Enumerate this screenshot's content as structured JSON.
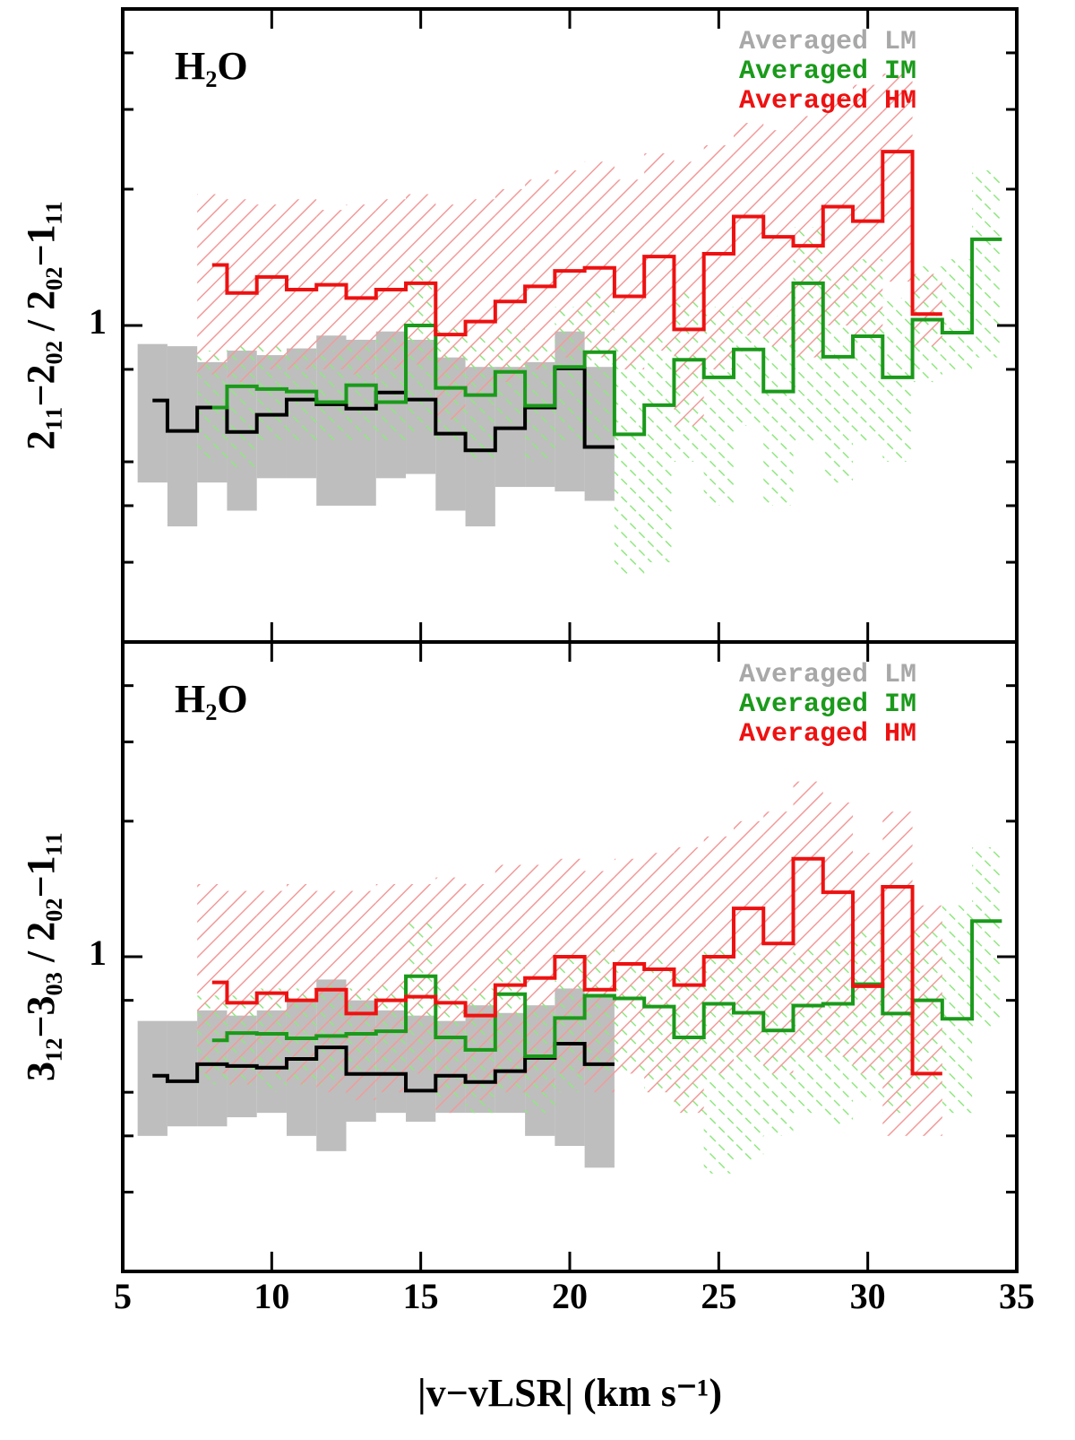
{
  "chart_data": [
    {
      "type": "step",
      "annotation": "H₂O",
      "ylabel": "2₁₁−2₀₂ / 2₀₂−1₁₁",
      "log_y": true,
      "ylim": [
        0.2,
        5
      ],
      "yticks": [
        1
      ],
      "minor_yticks": [
        0.3,
        0.4,
        0.5,
        0.8,
        2,
        3,
        4
      ],
      "legend": "upper right",
      "series": [
        {
          "name": "Averaged LM",
          "color": "#a8a8a8",
          "line_color": "#000000",
          "band_color": "#bebebe",
          "x": [
            6,
            7,
            8,
            9,
            10,
            11,
            12,
            13,
            14,
            15,
            16,
            17,
            18,
            19,
            20,
            21
          ],
          "values": [
            0.683,
            0.585,
            0.659,
            0.582,
            0.635,
            0.686,
            0.67,
            0.655,
            0.711,
            0.686,
            0.577,
            0.53,
            0.593,
            0.659,
            0.804,
            0.539
          ],
          "low": [
            0.45,
            0.36,
            0.45,
            0.39,
            0.46,
            0.46,
            0.4,
            0.4,
            0.46,
            0.47,
            0.39,
            0.36,
            0.44,
            0.44,
            0.43,
            0.41
          ],
          "high": [
            0.91,
            0.9,
            0.83,
            0.88,
            0.86,
            0.89,
            0.95,
            0.93,
            0.97,
            0.93,
            0.85,
            0.81,
            0.81,
            0.83,
            0.97,
            0.81
          ]
        },
        {
          "name": "Averaged IM",
          "color": "#1a9a1a",
          "line_color": "#1a9a1a",
          "band_color": "#8fe87f",
          "x": [
            8,
            9,
            10,
            11,
            12,
            13,
            14,
            15,
            16,
            17,
            18,
            19,
            20,
            21,
            22,
            23,
            24,
            25,
            26,
            27,
            28,
            29,
            30,
            31,
            32,
            33,
            34
          ],
          "values": [
            0.659,
            0.734,
            0.724,
            0.715,
            0.677,
            0.738,
            0.677,
            1.0,
            0.728,
            0.702,
            0.79,
            0.665,
            0.81,
            0.873,
            0.575,
            0.667,
            0.84,
            0.768,
            0.885,
            0.715,
            1.24,
            0.853,
            0.947,
            0.768,
            1.03,
            0.964,
            1.55
          ],
          "low": [
            0.5,
            0.48,
            0.55,
            0.55,
            0.55,
            0.55,
            0.55,
            0.58,
            0.55,
            0.5,
            0.6,
            0.5,
            0.55,
            0.55,
            0.28,
            0.3,
            0.5,
            0.4,
            0.6,
            0.4,
            0.55,
            0.45,
            0.55,
            0.5,
            0.75,
            0.8,
            0.85
          ],
          "high": [
            0.88,
            0.9,
            0.9,
            0.88,
            0.88,
            0.92,
            0.95,
            1.4,
            1.0,
            0.95,
            1.0,
            0.9,
            1.1,
            1.2,
            0.95,
            0.95,
            1.2,
            1.1,
            1.15,
            1.05,
            1.65,
            1.3,
            1.4,
            1.15,
            1.35,
            1.4,
            2.2
          ]
        },
        {
          "name": "Averaged HM",
          "color": "#ee1111",
          "line_color": "#ee1111",
          "band_color": "#f39a9a",
          "x": [
            8,
            9,
            10,
            11,
            12,
            13,
            14,
            15,
            16,
            17,
            18,
            19,
            20,
            21,
            22,
            23,
            24,
            25,
            26,
            27,
            28,
            29,
            30,
            31,
            32
          ],
          "values": [
            1.36,
            1.18,
            1.28,
            1.2,
            1.23,
            1.15,
            1.2,
            1.24,
            0.955,
            1.02,
            1.13,
            1.22,
            1.32,
            1.34,
            1.16,
            1.42,
            0.98,
            1.44,
            1.74,
            1.57,
            1.5,
            1.83,
            1.7,
            2.42,
            1.06
          ],
          "low": [
            0.78,
            0.75,
            0.8,
            0.8,
            0.8,
            0.78,
            0.8,
            0.82,
            0.62,
            0.7,
            0.75,
            0.8,
            0.85,
            0.85,
            0.8,
            0.88,
            0.6,
            0.8,
            0.95,
            0.9,
            0.85,
            1.0,
            0.95,
            1.25,
            0.9
          ],
          "high": [
            1.95,
            1.9,
            1.85,
            1.9,
            1.8,
            1.85,
            1.9,
            1.95,
            1.85,
            1.9,
            2.0,
            2.1,
            2.2,
            2.3,
            2.1,
            2.4,
            2.3,
            2.5,
            2.8,
            2.7,
            2.9,
            3.2,
            3.4,
            3.6,
            1.3
          ]
        }
      ]
    },
    {
      "type": "step",
      "annotation": "H₂O",
      "ylabel": "3₁₂−3₀₃ / 2₀₂−1₁₁",
      "xlabel": "|v−vLSR| (km s⁻¹)",
      "xlim": [
        5,
        35
      ],
      "xticks": [
        5,
        10,
        15,
        20,
        25,
        30,
        35
      ],
      "log_y": true,
      "ylim": [
        0.2,
        5
      ],
      "yticks": [
        1
      ],
      "minor_yticks": [
        0.3,
        0.4,
        0.5,
        0.8,
        2,
        3,
        4
      ],
      "legend": "upper right",
      "series": [
        {
          "name": "Averaged LM",
          "color": "#a8a8a8",
          "line_color": "#000000",
          "band_color": "#bebebe",
          "x": [
            6,
            7,
            8,
            9,
            10,
            11,
            12,
            13,
            14,
            15,
            16,
            17,
            18,
            19,
            20,
            21
          ],
          "values": [
            0.544,
            0.529,
            0.577,
            0.572,
            0.567,
            0.593,
            0.629,
            0.549,
            0.549,
            0.504,
            0.544,
            0.527,
            0.557,
            0.596,
            0.641,
            0.577
          ],
          "low": [
            0.4,
            0.42,
            0.42,
            0.44,
            0.45,
            0.4,
            0.37,
            0.43,
            0.45,
            0.43,
            0.45,
            0.45,
            0.45,
            0.4,
            0.38,
            0.34
          ],
          "high": [
            0.72,
            0.72,
            0.76,
            0.74,
            0.76,
            0.8,
            0.89,
            0.8,
            0.76,
            0.74,
            0.72,
            0.78,
            0.75,
            0.78,
            0.85,
            0.82
          ]
        },
        {
          "name": "Averaged IM",
          "color": "#1a9a1a",
          "line_color": "#1a9a1a",
          "band_color": "#8fe87f",
          "x": [
            8,
            9,
            10,
            11,
            12,
            13,
            14,
            15,
            16,
            17,
            18,
            19,
            20,
            21,
            22,
            23,
            24,
            25,
            26,
            27,
            28,
            29,
            30,
            31,
            32,
            33,
            34
          ],
          "values": [
            0.652,
            0.677,
            0.674,
            0.659,
            0.667,
            0.674,
            0.683,
            0.905,
            0.662,
            0.621,
            0.826,
            0.601,
            0.731,
            0.819,
            0.808,
            0.775,
            0.662,
            0.786,
            0.751,
            0.686,
            0.779,
            0.786,
            0.869,
            0.748,
            0.8,
            0.728,
            1.2
          ],
          "low": [
            0.52,
            0.52,
            0.5,
            0.52,
            0.52,
            0.55,
            0.55,
            0.55,
            0.48,
            0.45,
            0.5,
            0.45,
            0.5,
            0.55,
            0.55,
            0.5,
            0.45,
            0.33,
            0.35,
            0.4,
            0.45,
            0.42,
            0.48,
            0.45,
            0.5,
            0.45,
            0.7
          ],
          "high": [
            0.82,
            0.82,
            0.85,
            0.85,
            0.88,
            0.85,
            0.88,
            1.2,
            0.88,
            0.85,
            1.05,
            0.8,
            1.0,
            1.05,
            0.95,
            1.0,
            0.95,
            1.05,
            1.05,
            1.0,
            1.05,
            1.1,
            1.15,
            1.05,
            1.2,
            1.3,
            1.75
          ]
        },
        {
          "name": "Averaged HM",
          "color": "#ee1111",
          "line_color": "#ee1111",
          "band_color": "#f39a9a",
          "x": [
            8,
            9,
            10,
            11,
            12,
            13,
            14,
            15,
            16,
            17,
            18,
            19,
            20,
            21,
            22,
            23,
            24,
            25,
            26,
            27,
            28,
            29,
            30,
            31,
            32
          ],
          "values": [
            0.877,
            0.79,
            0.83,
            0.8,
            0.845,
            0.748,
            0.8,
            0.815,
            0.79,
            0.74,
            0.865,
            0.897,
            1.0,
            0.845,
            0.964,
            0.938,
            0.865,
            1.0,
            1.28,
            1.07,
            1.65,
            1.39,
            0.86,
            1.43,
            0.55
          ],
          "low": [
            0.55,
            0.52,
            0.55,
            0.52,
            0.5,
            0.48,
            0.5,
            0.55,
            0.45,
            0.48,
            0.5,
            0.5,
            0.55,
            0.5,
            0.55,
            0.5,
            0.45,
            0.55,
            0.6,
            0.55,
            0.6,
            0.6,
            0.55,
            0.4,
            0.4
          ],
          "high": [
            1.45,
            1.4,
            1.4,
            1.45,
            1.4,
            1.4,
            1.45,
            1.45,
            1.5,
            1.45,
            1.6,
            1.6,
            1.65,
            1.55,
            1.65,
            1.7,
            1.75,
            1.85,
            2.0,
            2.1,
            2.45,
            2.2,
            1.7,
            2.1,
            1.3
          ]
        }
      ]
    }
  ]
}
